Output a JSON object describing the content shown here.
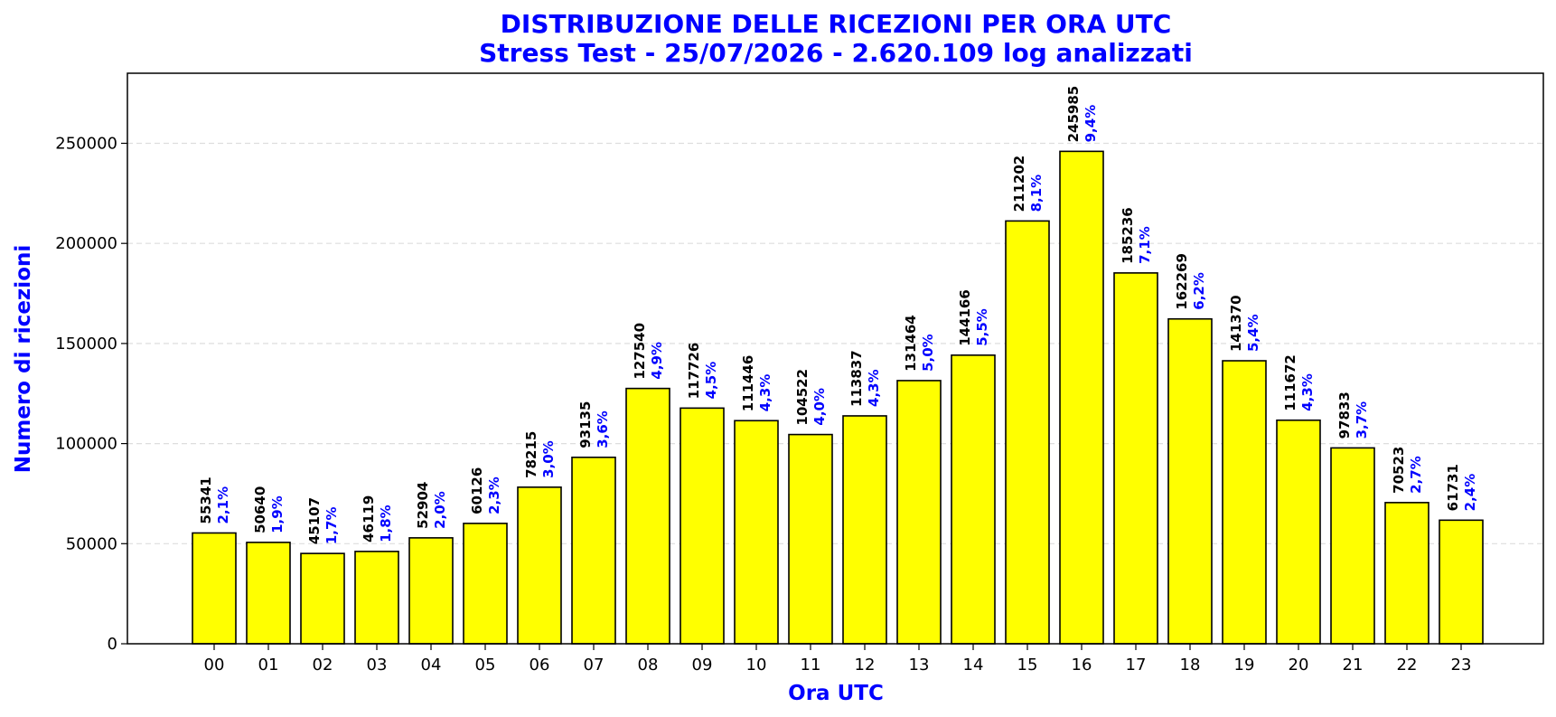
{
  "chart_data": {
    "type": "bar",
    "title": "DISTRIBUZIONE DELLE RICEZIONI PER ORA UTC",
    "subtitle": "Stress Test - 25/07/2026 - 2.620.109 log analizzati",
    "xlabel": "Ora UTC",
    "ylabel": "Numero di ricezioni",
    "ylim": [
      0,
      285000
    ],
    "yticks": [
      0,
      50000,
      100000,
      150000,
      200000,
      250000
    ],
    "grid": "y-dashed",
    "categories": [
      "00",
      "01",
      "02",
      "03",
      "04",
      "05",
      "06",
      "07",
      "08",
      "09",
      "10",
      "11",
      "12",
      "13",
      "14",
      "15",
      "16",
      "17",
      "18",
      "19",
      "20",
      "21",
      "22",
      "23"
    ],
    "values": [
      55341,
      50640,
      45107,
      46119,
      52904,
      60126,
      78215,
      93135,
      127540,
      117726,
      111446,
      104522,
      113837,
      131464,
      144166,
      211202,
      245985,
      185236,
      162269,
      141370,
      111672,
      97833,
      70523,
      61731
    ],
    "percent_labels": [
      "2,1%",
      "1,9%",
      "1,7%",
      "1,8%",
      "2,0%",
      "2,3%",
      "3,0%",
      "3,6%",
      "4,9%",
      "4,5%",
      "4,3%",
      "4,0%",
      "4,3%",
      "5,0%",
      "5,5%",
      "8,1%",
      "9,4%",
      "7,1%",
      "6,2%",
      "5,4%",
      "4,3%",
      "3,7%",
      "2,7%",
      "2,4%"
    ],
    "colors": {
      "bar_fill": "#ffff00",
      "bar_edge": "#000000",
      "title": "#0000ff",
      "axis_label": "#0000ff",
      "percent_label": "#0000ff",
      "grid": "#dddddd"
    }
  }
}
